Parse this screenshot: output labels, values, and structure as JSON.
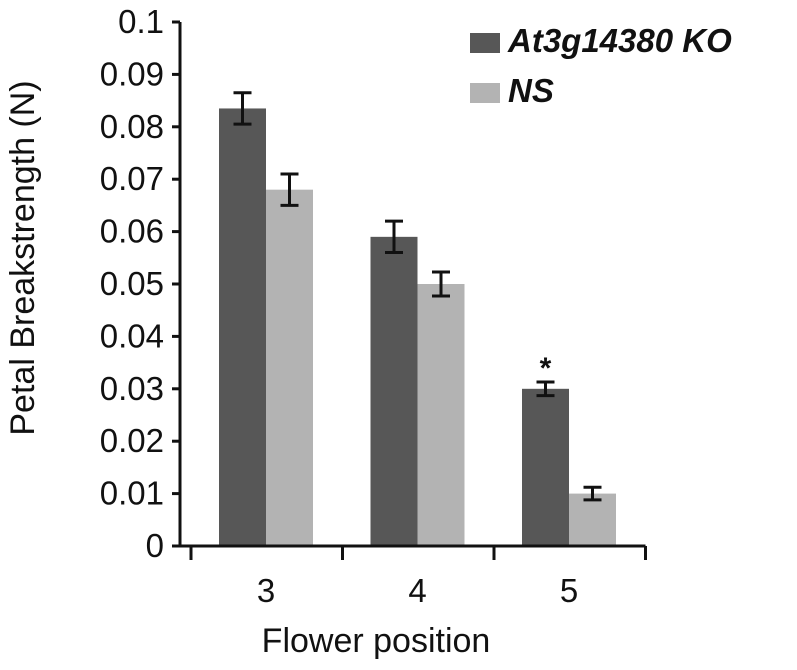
{
  "chart_data": {
    "type": "bar",
    "title": "",
    "xlabel": "Flower position",
    "ylabel": "Petal Breakstrength (N)",
    "ylim": [
      0,
      0.1
    ],
    "yticks": [
      "0",
      "0.01",
      "0.02",
      "0.03",
      "0.04",
      "0.05",
      "0.06",
      "0.07",
      "0.08",
      "0.09",
      "0.1"
    ],
    "categories": [
      "3",
      "4",
      "5"
    ],
    "series": [
      {
        "name": "At3g14380 KO",
        "color": "#575757",
        "values": [
          0.0835,
          0.059,
          0.03
        ],
        "errors": [
          0.003,
          0.003,
          0.0013
        ]
      },
      {
        "name": "NS",
        "color": "#b3b3b3",
        "values": [
          0.068,
          0.05,
          0.01
        ],
        "errors": [
          0.003,
          0.0023,
          0.0012
        ]
      }
    ],
    "annotations": [
      {
        "text": "*",
        "category": "5",
        "series": "At3g14380 KO"
      }
    ],
    "legend": "top-right",
    "grid": false
  }
}
